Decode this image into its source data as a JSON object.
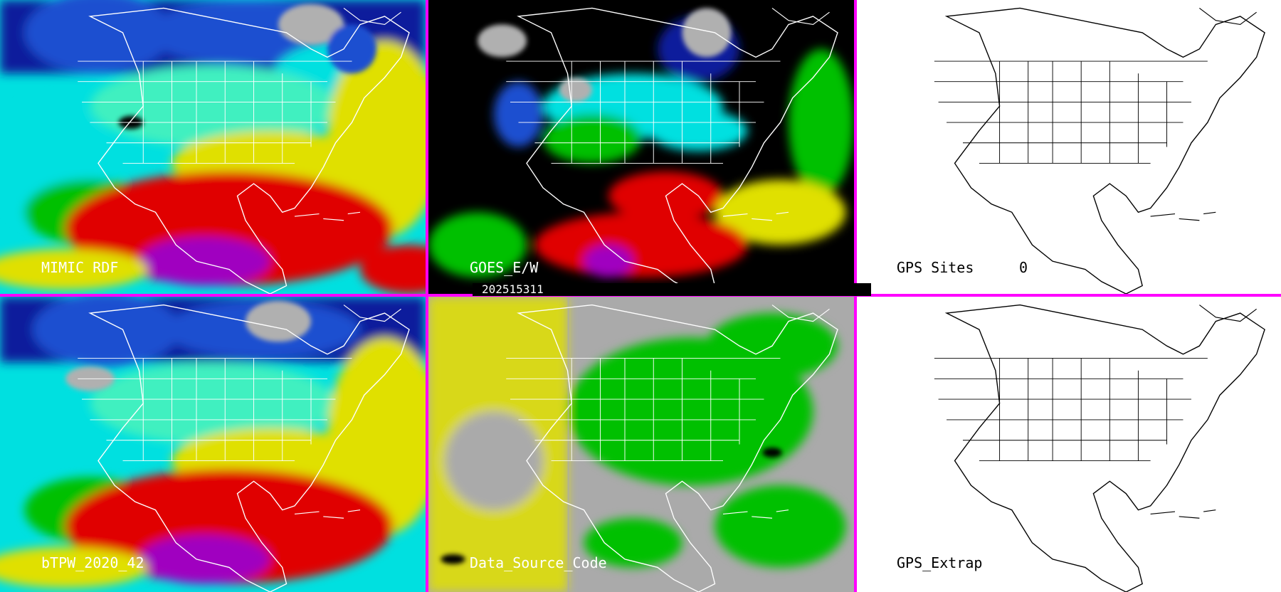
{
  "panels": {
    "mimic": {
      "label": "MIMIC RDF"
    },
    "goes": {
      "label": "GOES_E/W"
    },
    "gps_sites": {
      "label": "GPS Sites",
      "count": "0"
    },
    "btpw": {
      "label": "bTPW_2020_42"
    },
    "data_source": {
      "label": "Data_Source_Code"
    },
    "gps_extrap": {
      "label": "GPS_Extrap"
    }
  },
  "timestamp": "202515311",
  "colors": {
    "divider": "#ff00ff",
    "tpw_scale": [
      "#000000",
      "#b0b0b0",
      "#0a1a9c",
      "#1e50d0",
      "#00e0e0",
      "#40f0c0",
      "#00c000",
      "#e0e000",
      "#e00000",
      "#a000c0"
    ],
    "data_source_scale": [
      "#aaaaaa",
      "#e0e000",
      "#00c000",
      "#000000"
    ]
  },
  "icons": {
    "map_outline": "north-america-outline-icon"
  }
}
